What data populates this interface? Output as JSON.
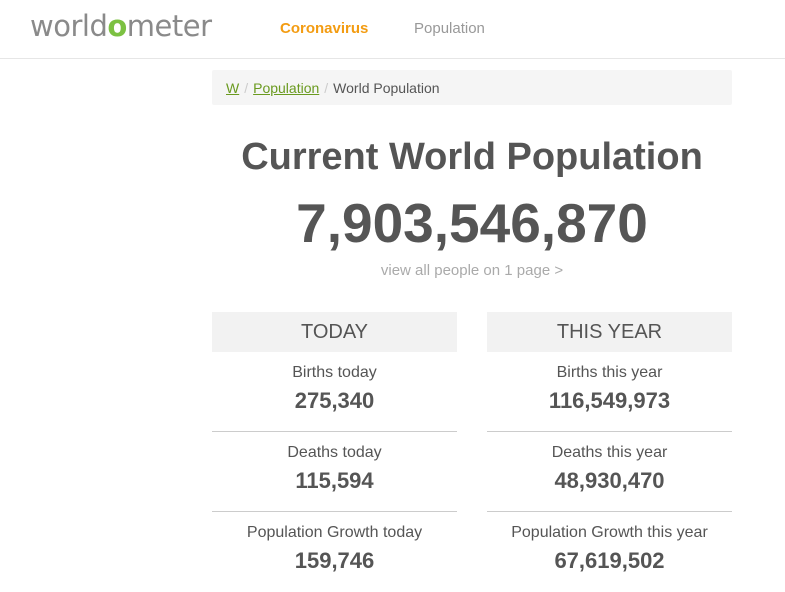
{
  "header": {
    "logo_prefix": "world",
    "logo_o": "o",
    "logo_suffix": "meter",
    "nav": [
      {
        "label": "Coronavirus"
      },
      {
        "label": "Population"
      }
    ]
  },
  "breadcrumb": {
    "items": [
      {
        "label": "W"
      },
      {
        "label": "Population"
      }
    ],
    "separator": "/",
    "current": "World Population"
  },
  "main": {
    "title": "Current World Population",
    "counter": "7,903,546,870",
    "view_all": "view all people on 1 page >"
  },
  "columns": [
    {
      "heading": "TODAY",
      "stats": [
        {
          "label": "Births today",
          "value": "275,340"
        },
        {
          "label": "Deaths today",
          "value": "115,594"
        },
        {
          "label": "Population Growth today",
          "value": "159,746"
        }
      ]
    },
    {
      "heading": "THIS YEAR",
      "stats": [
        {
          "label": "Births this year",
          "value": "116,549,973"
        },
        {
          "label": "Deaths this year",
          "value": "48,930,470"
        },
        {
          "label": "Population Growth this year",
          "value": "67,619,502"
        }
      ]
    }
  ],
  "colors": {
    "brand_green": "#7cc142",
    "nav_active": "#f39c12",
    "link_green": "#6a9a1f"
  }
}
